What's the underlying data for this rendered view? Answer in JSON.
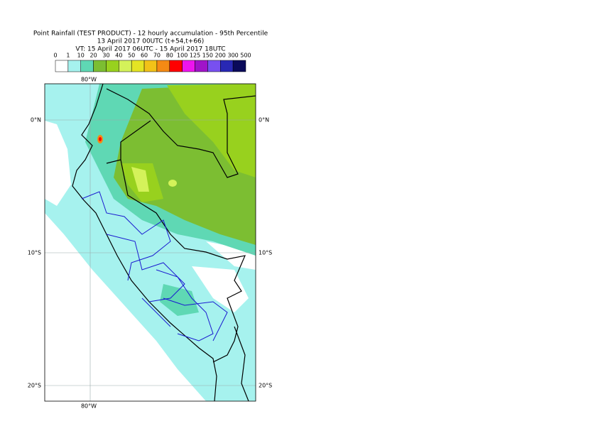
{
  "header": {
    "title": "Point Rainfall (TEST PRODUCT) - 12 hourly accumulation - 95th Percentile",
    "run": "13 April 2017 00UTC (t+54,t+66)",
    "valid": "VT: 15 April 2017 06UTC - 15 April 2017 18UTC"
  },
  "legend": {
    "ticks": [
      0,
      1,
      10,
      20,
      30,
      40,
      50,
      60,
      70,
      80,
      100,
      125,
      150,
      200,
      300,
      500
    ],
    "colors": [
      "#ffffff",
      "#a6f2ee",
      "#5fd8b4",
      "#7cbe32",
      "#98d11e",
      "#d4f25a",
      "#e4e424",
      "#f2c218",
      "#f58a14",
      "#ff0000",
      "#ee14ee",
      "#a014c8",
      "#7850f0",
      "#2828b4",
      "#0a0a5a"
    ]
  },
  "map": {
    "lon_label": "80°W",
    "lat_labels": [
      "0°N",
      "10°S",
      "20°S"
    ]
  }
}
